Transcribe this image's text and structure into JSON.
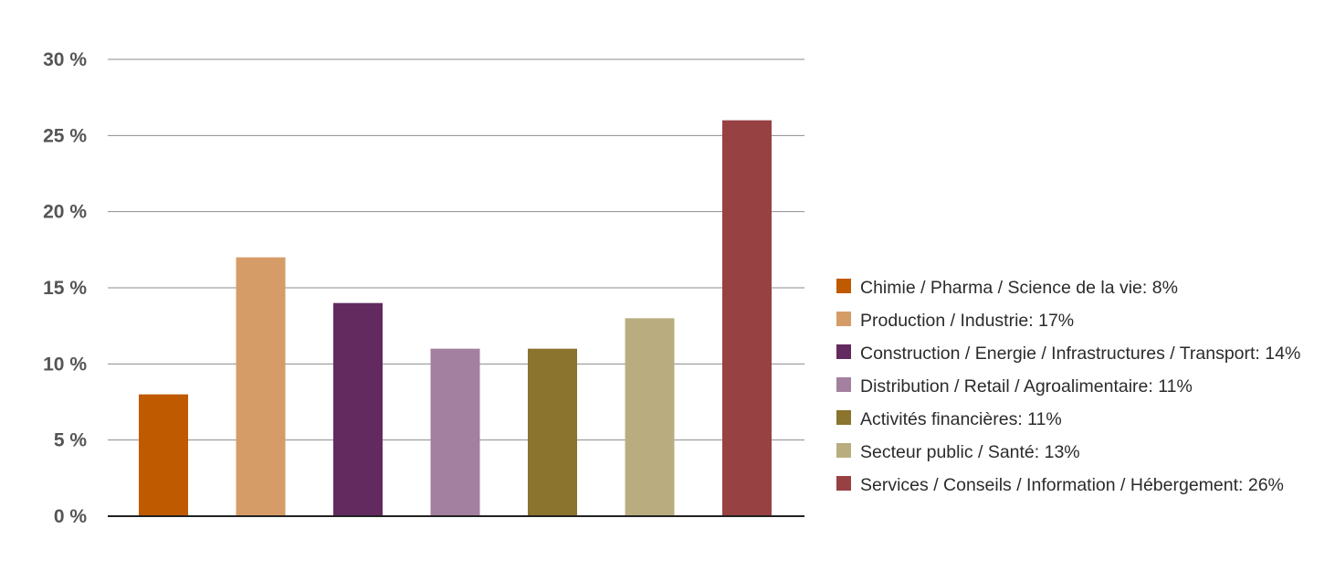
{
  "chart_data": {
    "type": "bar",
    "categories": [
      "Chimie / Pharma / Science de la vie: 8%",
      "Production / Industrie: 17%",
      "Construction / Energie / Infrastructures / Transport: 14%",
      "Distribution / Retail / Agroalimentaire: 11%",
      "Activités financières: 11%",
      "Secteur public / Santé: 13%",
      "Services / Conseils / Information / Hébergement: 26%"
    ],
    "values": [
      8,
      17,
      14,
      11,
      11,
      13,
      26
    ],
    "colors": [
      "#bf5a00",
      "#d69c67",
      "#632a60",
      "#a37fa0",
      "#8a742e",
      "#b9ad80",
      "#974143"
    ],
    "yticks": [
      0,
      5,
      10,
      15,
      20,
      25,
      30
    ],
    "ytick_labels": [
      "0 %",
      "5 %",
      "10 %",
      "15 %",
      "20 %",
      "25 %",
      "30 %"
    ],
    "ylim": [
      0,
      30
    ],
    "title": "",
    "xlabel": "",
    "ylabel": "",
    "grid": true,
    "legend_position": "right"
  }
}
